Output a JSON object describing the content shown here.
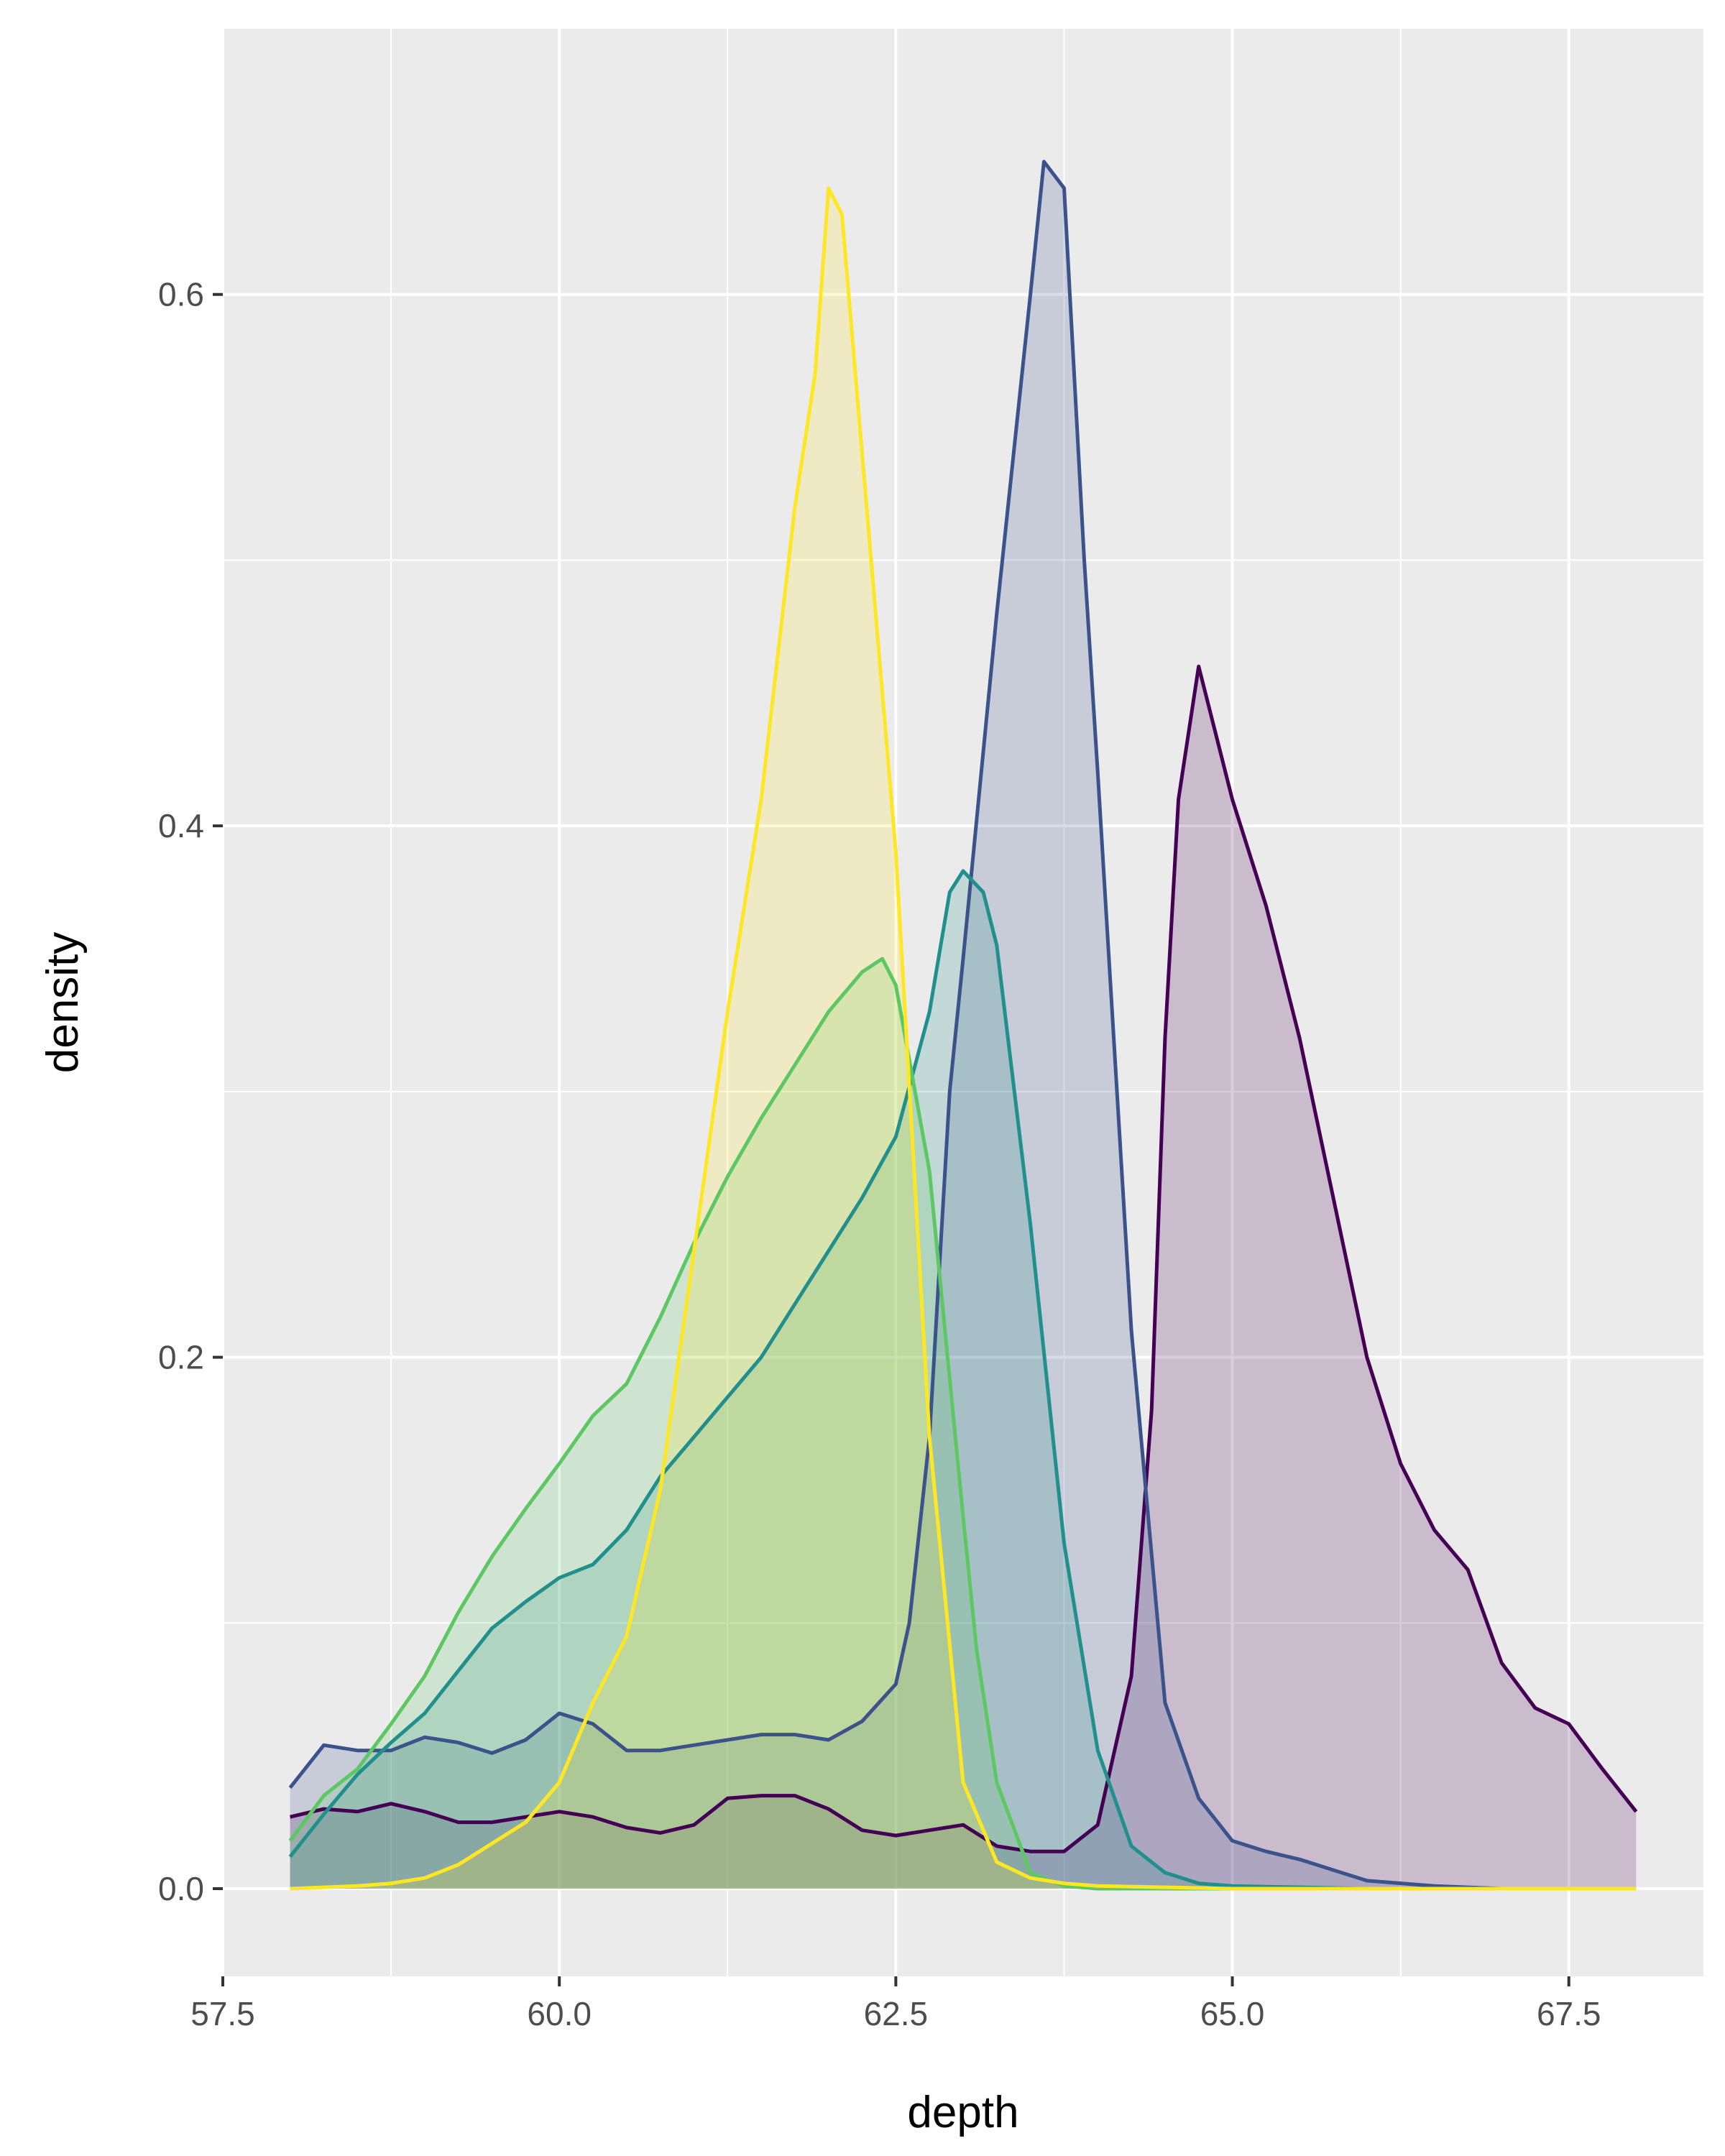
{
  "chart_data": {
    "type": "area",
    "xlabel": "depth",
    "ylabel": "density",
    "xlim": [
      57.5,
      68.5
    ],
    "ylim": [
      -0.033,
      0.7
    ],
    "x_ticks": [
      57.5,
      60.0,
      62.5,
      65.0,
      67.5
    ],
    "x_tick_labels": [
      "57.5",
      "60.0",
      "62.5",
      "65.0",
      "67.5"
    ],
    "y_ticks": [
      0.0,
      0.2,
      0.4,
      0.6
    ],
    "y_tick_labels": [
      "0.0",
      "0.2",
      "0.4",
      "0.6"
    ],
    "grid": true,
    "background": "#EBEBEB",
    "legend": "none",
    "fill_opacity": 0.2,
    "series": [
      {
        "color": "#440154",
        "points": [
          [
            58,
            0.027
          ],
          [
            58.25,
            0.03
          ],
          [
            58.5,
            0.029
          ],
          [
            58.75,
            0.032
          ],
          [
            59,
            0.029
          ],
          [
            59.25,
            0.025
          ],
          [
            59.5,
            0.025
          ],
          [
            59.75,
            0.027
          ],
          [
            60,
            0.029
          ],
          [
            60.25,
            0.027
          ],
          [
            60.5,
            0.023
          ],
          [
            60.75,
            0.021
          ],
          [
            61,
            0.024
          ],
          [
            61.25,
            0.034
          ],
          [
            61.5,
            0.035
          ],
          [
            61.75,
            0.035
          ],
          [
            62,
            0.03
          ],
          [
            62.25,
            0.022
          ],
          [
            62.5,
            0.02
          ],
          [
            62.75,
            0.022
          ],
          [
            63,
            0.024
          ],
          [
            63.25,
            0.016
          ],
          [
            63.5,
            0.014
          ],
          [
            63.75,
            0.014
          ],
          [
            64,
            0.024
          ],
          [
            64.25,
            0.08
          ],
          [
            64.4,
            0.18
          ],
          [
            64.5,
            0.32
          ],
          [
            64.6,
            0.41
          ],
          [
            64.75,
            0.46
          ],
          [
            64.9,
            0.43
          ],
          [
            65,
            0.41
          ],
          [
            65.25,
            0.37
          ],
          [
            65.5,
            0.32
          ],
          [
            65.75,
            0.26
          ],
          [
            66,
            0.2
          ],
          [
            66.25,
            0.16
          ],
          [
            66.5,
            0.135
          ],
          [
            66.75,
            0.12
          ],
          [
            67,
            0.085
          ],
          [
            67.25,
            0.068
          ],
          [
            67.5,
            0.062
          ],
          [
            67.75,
            0.045
          ],
          [
            68,
            0.029
          ]
        ]
      },
      {
        "color": "#3B528B",
        "points": [
          [
            58,
            0.038
          ],
          [
            58.25,
            0.054
          ],
          [
            58.5,
            0.052
          ],
          [
            58.75,
            0.052
          ],
          [
            59,
            0.057
          ],
          [
            59.25,
            0.055
          ],
          [
            59.5,
            0.051
          ],
          [
            59.75,
            0.056
          ],
          [
            60,
            0.066
          ],
          [
            60.25,
            0.062
          ],
          [
            60.5,
            0.052
          ],
          [
            60.75,
            0.052
          ],
          [
            61,
            0.054
          ],
          [
            61.25,
            0.056
          ],
          [
            61.5,
            0.058
          ],
          [
            61.75,
            0.058
          ],
          [
            62,
            0.056
          ],
          [
            62.25,
            0.063
          ],
          [
            62.5,
            0.077
          ],
          [
            62.6,
            0.1
          ],
          [
            62.75,
            0.17
          ],
          [
            62.9,
            0.3
          ],
          [
            63,
            0.35
          ],
          [
            63.25,
            0.48
          ],
          [
            63.5,
            0.6
          ],
          [
            63.6,
            0.65
          ],
          [
            63.75,
            0.64
          ],
          [
            63.9,
            0.5
          ],
          [
            64,
            0.42
          ],
          [
            64.25,
            0.21
          ],
          [
            64.5,
            0.07
          ],
          [
            64.75,
            0.034
          ],
          [
            65,
            0.018
          ],
          [
            65.25,
            0.014
          ],
          [
            65.5,
            0.011
          ],
          [
            65.75,
            0.007
          ],
          [
            66,
            0.003
          ],
          [
            66.5,
            0.001
          ],
          [
            67,
            0.0
          ],
          [
            68,
            0.0
          ]
        ]
      },
      {
        "color": "#21908C",
        "points": [
          [
            58,
            0.012
          ],
          [
            58.25,
            0.028
          ],
          [
            58.5,
            0.043
          ],
          [
            58.75,
            0.055
          ],
          [
            59,
            0.066
          ],
          [
            59.25,
            0.082
          ],
          [
            59.5,
            0.098
          ],
          [
            59.75,
            0.108
          ],
          [
            60,
            0.117
          ],
          [
            60.25,
            0.122
          ],
          [
            60.5,
            0.135
          ],
          [
            60.75,
            0.155
          ],
          [
            61,
            0.17
          ],
          [
            61.25,
            0.185
          ],
          [
            61.5,
            0.2
          ],
          [
            61.75,
            0.22
          ],
          [
            62,
            0.24
          ],
          [
            62.25,
            0.26
          ],
          [
            62.5,
            0.283
          ],
          [
            62.75,
            0.33
          ],
          [
            62.9,
            0.375
          ],
          [
            63,
            0.383
          ],
          [
            63.15,
            0.375
          ],
          [
            63.25,
            0.355
          ],
          [
            63.5,
            0.25
          ],
          [
            63.75,
            0.13
          ],
          [
            64,
            0.052
          ],
          [
            64.25,
            0.016
          ],
          [
            64.5,
            0.006
          ],
          [
            64.75,
            0.002
          ],
          [
            65,
            0.001
          ],
          [
            66,
            0.0
          ],
          [
            68,
            0.0
          ]
        ]
      },
      {
        "color": "#5DC863",
        "points": [
          [
            58,
            0.018
          ],
          [
            58.25,
            0.035
          ],
          [
            58.5,
            0.045
          ],
          [
            58.75,
            0.062
          ],
          [
            59,
            0.08
          ],
          [
            59.25,
            0.104
          ],
          [
            59.5,
            0.125
          ],
          [
            59.75,
            0.143
          ],
          [
            60,
            0.16
          ],
          [
            60.25,
            0.178
          ],
          [
            60.5,
            0.19
          ],
          [
            60.75,
            0.215
          ],
          [
            61,
            0.243
          ],
          [
            61.25,
            0.268
          ],
          [
            61.5,
            0.29
          ],
          [
            61.75,
            0.31
          ],
          [
            62,
            0.33
          ],
          [
            62.25,
            0.345
          ],
          [
            62.4,
            0.35
          ],
          [
            62.5,
            0.34
          ],
          [
            62.75,
            0.27
          ],
          [
            63,
            0.14
          ],
          [
            63.1,
            0.09
          ],
          [
            63.25,
            0.04
          ],
          [
            63.5,
            0.006
          ],
          [
            63.75,
            0.001
          ],
          [
            64,
            0.0
          ],
          [
            68,
            0.0
          ]
        ]
      },
      {
        "color": "#FDE725",
        "points": [
          [
            58,
            0.0
          ],
          [
            58.5,
            0.001
          ],
          [
            58.75,
            0.002
          ],
          [
            59,
            0.004
          ],
          [
            59.25,
            0.009
          ],
          [
            59.5,
            0.017
          ],
          [
            59.75,
            0.025
          ],
          [
            60,
            0.04
          ],
          [
            60.25,
            0.07
          ],
          [
            60.5,
            0.095
          ],
          [
            60.75,
            0.15
          ],
          [
            61,
            0.24
          ],
          [
            61.25,
            0.33
          ],
          [
            61.5,
            0.41
          ],
          [
            61.75,
            0.52
          ],
          [
            61.9,
            0.57
          ],
          [
            62,
            0.64
          ],
          [
            62.1,
            0.63
          ],
          [
            62.25,
            0.54
          ],
          [
            62.5,
            0.39
          ],
          [
            62.75,
            0.17
          ],
          [
            63,
            0.04
          ],
          [
            63.25,
            0.01
          ],
          [
            63.5,
            0.004
          ],
          [
            63.75,
            0.002
          ],
          [
            64,
            0.001
          ],
          [
            65,
            0.0
          ],
          [
            68,
            0.0
          ]
        ]
      }
    ]
  }
}
